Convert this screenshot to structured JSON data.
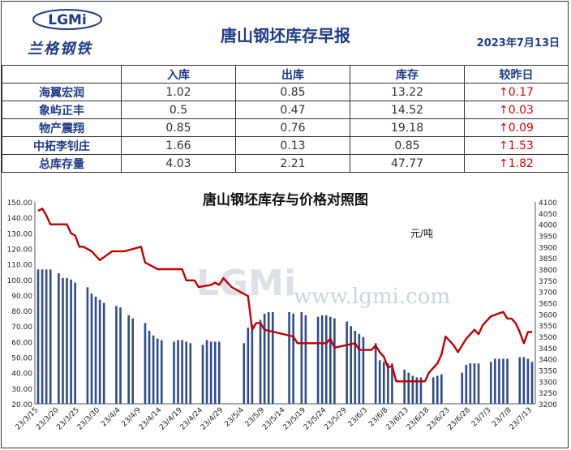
{
  "header": {
    "logo_text": "兰格钢铁",
    "logo_mark": "LGMi",
    "title": "唐山钢坯库存早报",
    "date": "2023年7月13日"
  },
  "table": {
    "columns": [
      "",
      "入库",
      "出库",
      "库存",
      "较昨日"
    ],
    "rows": [
      {
        "name": "海翼宏润",
        "in": "1.02",
        "out": "0.85",
        "stock": "13.22",
        "change": "↑0.17"
      },
      {
        "name": "象屿正丰",
        "in": "0.5",
        "out": "0.47",
        "stock": "14.52",
        "change": "↑0.03"
      },
      {
        "name": "物产震翔",
        "in": "0.85",
        "out": "0.76",
        "stock": "19.18",
        "change": "↑0.09"
      },
      {
        "name": "中拓李钊庄",
        "in": "1.66",
        "out": "0.13",
        "stock": "0.85",
        "change": "↑1.53"
      },
      {
        "name": "总库存量",
        "in": "4.03",
        "out": "2.21",
        "stock": "47.77",
        "change": "↑1.82"
      }
    ]
  },
  "chart_data": {
    "type": "bar+line",
    "title": "唐山钢坯库存与价格对照图",
    "right_unit": "元/吨",
    "watermark_url": "www.lgmi.com",
    "watermark_logo": "LGMi",
    "y_left": {
      "min": 20,
      "max": 150,
      "step": 10
    },
    "y_right": {
      "min": 3200,
      "max": 4100,
      "step": 50
    },
    "x_labels": [
      "23/3/15",
      "23/3/20",
      "23/3/25",
      "23/3/30",
      "23/4/4",
      "23/4/9",
      "23/4/14",
      "23/4/19",
      "23/4/24",
      "23/4/29",
      "23/5/4",
      "23/5/9",
      "23/5/14",
      "23/5/19",
      "23/5/24",
      "23/5/29",
      "23/6/3",
      "23/6/8",
      "23/6/13",
      "23/6/18",
      "23/6/23",
      "23/6/28",
      "23/7/3",
      "23/7/8",
      "23/7/13"
    ],
    "days": 121,
    "colors": {
      "bar": "#2f4b8f",
      "line": "#c00000"
    },
    "bars": [
      {
        "d": 0,
        "v": 106.5
      },
      {
        "d": 1,
        "v": 106.5
      },
      {
        "d": 2,
        "v": 106.5
      },
      {
        "d": 3,
        "v": 106.5
      },
      {
        "d": 5,
        "v": 104
      },
      {
        "d": 6,
        "v": 101
      },
      {
        "d": 7,
        "v": 101
      },
      {
        "d": 8,
        "v": 100
      },
      {
        "d": 9,
        "v": 98
      },
      {
        "d": 12,
        "v": 95
      },
      {
        "d": 13,
        "v": 91
      },
      {
        "d": 14,
        "v": 89
      },
      {
        "d": 15,
        "v": 87
      },
      {
        "d": 16,
        "v": 85
      },
      {
        "d": 19,
        "v": 83
      },
      {
        "d": 20,
        "v": 82
      },
      {
        "d": 22,
        "v": 77
      },
      {
        "d": 23,
        "v": 75
      },
      {
        "d": 26,
        "v": 72
      },
      {
        "d": 27,
        "v": 67
      },
      {
        "d": 28,
        "v": 64
      },
      {
        "d": 29,
        "v": 62
      },
      {
        "d": 30,
        "v": 61
      },
      {
        "d": 33,
        "v": 60
      },
      {
        "d": 34,
        "v": 61
      },
      {
        "d": 35,
        "v": 61
      },
      {
        "d": 36,
        "v": 60
      },
      {
        "d": 37,
        "v": 59
      },
      {
        "d": 40,
        "v": 58
      },
      {
        "d": 41,
        "v": 61
      },
      {
        "d": 42,
        "v": 60
      },
      {
        "d": 43,
        "v": 60
      },
      {
        "d": 44,
        "v": 60
      },
      {
        "d": 50,
        "v": 59
      },
      {
        "d": 51,
        "v": 69
      },
      {
        "d": 52,
        "v": 71
      },
      {
        "d": 54,
        "v": 74
      },
      {
        "d": 55,
        "v": 78
      },
      {
        "d": 56,
        "v": 79
      },
      {
        "d": 57,
        "v": 79
      },
      {
        "d": 61,
        "v": 79
      },
      {
        "d": 62,
        "v": 78
      },
      {
        "d": 64,
        "v": 79
      },
      {
        "d": 65,
        "v": 77
      },
      {
        "d": 68,
        "v": 76
      },
      {
        "d": 69,
        "v": 77
      },
      {
        "d": 70,
        "v": 77
      },
      {
        "d": 71,
        "v": 76
      },
      {
        "d": 72,
        "v": 75
      },
      {
        "d": 75,
        "v": 73
      },
      {
        "d": 76,
        "v": 70
      },
      {
        "d": 77,
        "v": 67
      },
      {
        "d": 78,
        "v": 65
      },
      {
        "d": 79,
        "v": 63
      },
      {
        "d": 82,
        "v": 59
      },
      {
        "d": 83,
        "v": 48
      },
      {
        "d": 84,
        "v": 47
      },
      {
        "d": 85,
        "v": 46
      },
      {
        "d": 86,
        "v": 46
      },
      {
        "d": 89,
        "v": 42
      },
      {
        "d": 90,
        "v": 40
      },
      {
        "d": 91,
        "v": 38
      },
      {
        "d": 92,
        "v": 37
      },
      {
        "d": 93,
        "v": 37
      },
      {
        "d": 96,
        "v": 37
      },
      {
        "d": 97,
        "v": 38
      },
      {
        "d": 98,
        "v": 39
      },
      {
        "d": 103,
        "v": 40
      },
      {
        "d": 104,
        "v": 45
      },
      {
        "d": 105,
        "v": 46
      },
      {
        "d": 106,
        "v": 46
      },
      {
        "d": 107,
        "v": 46
      },
      {
        "d": 110,
        "v": 47
      },
      {
        "d": 111,
        "v": 49
      },
      {
        "d": 112,
        "v": 49
      },
      {
        "d": 113,
        "v": 49
      },
      {
        "d": 114,
        "v": 49
      },
      {
        "d": 117,
        "v": 50
      },
      {
        "d": 118,
        "v": 50
      },
      {
        "d": 119,
        "v": 49
      },
      {
        "d": 120,
        "v": 47
      }
    ],
    "price": [
      {
        "d": 0,
        "v": 4060
      },
      {
        "d": 1,
        "v": 4070
      },
      {
        "d": 2,
        "v": 4040
      },
      {
        "d": 3,
        "v": 4000
      },
      {
        "d": 7,
        "v": 4000
      },
      {
        "d": 8,
        "v": 3960
      },
      {
        "d": 9,
        "v": 3950
      },
      {
        "d": 10,
        "v": 3900
      },
      {
        "d": 11,
        "v": 3900
      },
      {
        "d": 13,
        "v": 3880
      },
      {
        "d": 15,
        "v": 3840
      },
      {
        "d": 18,
        "v": 3880
      },
      {
        "d": 21,
        "v": 3880
      },
      {
        "d": 25,
        "v": 3900
      },
      {
        "d": 26,
        "v": 3830
      },
      {
        "d": 28,
        "v": 3810
      },
      {
        "d": 29,
        "v": 3800
      },
      {
        "d": 35,
        "v": 3800
      },
      {
        "d": 36,
        "v": 3750
      },
      {
        "d": 38,
        "v": 3750
      },
      {
        "d": 39,
        "v": 3720
      },
      {
        "d": 42,
        "v": 3730
      },
      {
        "d": 43,
        "v": 3740
      },
      {
        "d": 44,
        "v": 3730
      },
      {
        "d": 45,
        "v": 3760
      },
      {
        "d": 47,
        "v": 3720
      },
      {
        "d": 48,
        "v": 3710
      },
      {
        "d": 51,
        "v": 3680
      },
      {
        "d": 52,
        "v": 3530
      },
      {
        "d": 53,
        "v": 3560
      },
      {
        "d": 54,
        "v": 3560
      },
      {
        "d": 55,
        "v": 3530
      },
      {
        "d": 62,
        "v": 3500
      },
      {
        "d": 63,
        "v": 3470
      },
      {
        "d": 70,
        "v": 3470
      },
      {
        "d": 71,
        "v": 3490
      },
      {
        "d": 72,
        "v": 3450
      },
      {
        "d": 77,
        "v": 3470
      },
      {
        "d": 78,
        "v": 3440
      },
      {
        "d": 81,
        "v": 3440
      },
      {
        "d": 82,
        "v": 3460
      },
      {
        "d": 83,
        "v": 3430
      },
      {
        "d": 84,
        "v": 3410
      },
      {
        "d": 85,
        "v": 3360
      },
      {
        "d": 86,
        "v": 3370
      },
      {
        "d": 87,
        "v": 3300
      },
      {
        "d": 94,
        "v": 3300
      },
      {
        "d": 95,
        "v": 3340
      },
      {
        "d": 97,
        "v": 3380
      },
      {
        "d": 98,
        "v": 3420
      },
      {
        "d": 99,
        "v": 3500
      },
      {
        "d": 101,
        "v": 3460
      },
      {
        "d": 102,
        "v": 3430
      },
      {
        "d": 104,
        "v": 3490
      },
      {
        "d": 106,
        "v": 3530
      },
      {
        "d": 107,
        "v": 3510
      },
      {
        "d": 108,
        "v": 3550
      },
      {
        "d": 110,
        "v": 3590
      },
      {
        "d": 113,
        "v": 3610
      },
      {
        "d": 114,
        "v": 3580
      },
      {
        "d": 115,
        "v": 3580
      },
      {
        "d": 116,
        "v": 3560
      },
      {
        "d": 117,
        "v": 3520
      },
      {
        "d": 118,
        "v": 3470
      },
      {
        "d": 119,
        "v": 3520
      },
      {
        "d": 120,
        "v": 3520
      }
    ]
  }
}
